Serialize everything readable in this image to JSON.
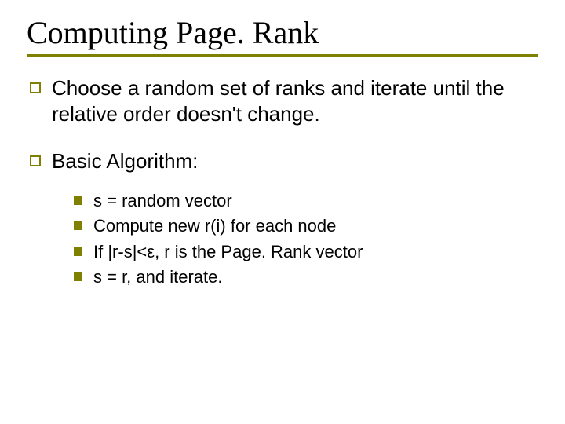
{
  "colors": {
    "accent": "#808000",
    "text": "#000000",
    "background": "#ffffff"
  },
  "slide": {
    "title": "Computing Page. Rank",
    "bullets": [
      {
        "text": "Choose a random set of ranks and iterate until the relative order doesn't change."
      },
      {
        "text": "Basic Algorithm:",
        "sub": [
          "s = random vector",
          "Compute new r(i) for each node",
          "If |r-s|<ε, r is the Page. Rank vector",
          "s = r, and iterate."
        ]
      }
    ]
  }
}
